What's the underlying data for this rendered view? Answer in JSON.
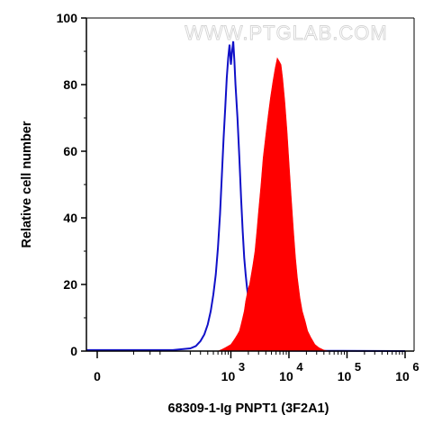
{
  "chart_data": {
    "type": "area",
    "xlabel": "68309-1-Ig PNPT1 (3F2A1)",
    "ylabel": "Relative cell number",
    "x_scale": "biexponential",
    "ylim": [
      0,
      100
    ],
    "y_ticks": [
      0,
      20,
      40,
      60,
      80,
      100
    ],
    "x_ticks": [
      {
        "value": 0,
        "base": "0",
        "exp": ""
      },
      {
        "value": 1000,
        "base": "10",
        "exp": "3"
      },
      {
        "value": 10000,
        "base": "10",
        "exp": "4"
      },
      {
        "value": 100000,
        "base": "10",
        "exp": "5"
      },
      {
        "value": 1000000,
        "base": "10",
        "exp": "6"
      }
    ],
    "watermark": "WWW.PTGLAB.COM",
    "series": [
      {
        "color": "#1010c8",
        "style": "outline",
        "points": [
          [
            -300,
            0.3
          ],
          [
            100,
            0.3
          ],
          [
            200,
            0.8
          ],
          [
            250,
            1.5
          ],
          [
            300,
            3
          ],
          [
            350,
            5
          ],
          [
            400,
            8
          ],
          [
            450,
            12
          ],
          [
            500,
            17
          ],
          [
            550,
            23
          ],
          [
            600,
            31
          ],
          [
            650,
            41
          ],
          [
            700,
            53
          ],
          [
            750,
            64
          ],
          [
            800,
            73
          ],
          [
            850,
            82
          ],
          [
            900,
            88
          ],
          [
            950,
            92
          ],
          [
            1000,
            86
          ],
          [
            1050,
            90
          ],
          [
            1100,
            93
          ],
          [
            1150,
            87
          ],
          [
            1200,
            80
          ],
          [
            1300,
            70
          ],
          [
            1400,
            58
          ],
          [
            1500,
            46
          ],
          [
            1600,
            36
          ],
          [
            1700,
            28
          ],
          [
            1800,
            23
          ],
          [
            1900,
            19
          ],
          [
            2000,
            16
          ],
          [
            2200,
            12
          ],
          [
            2400,
            9
          ],
          [
            2700,
            6
          ],
          [
            3000,
            4
          ],
          [
            3300,
            2.5
          ],
          [
            3700,
            1.5
          ],
          [
            4200,
            0.8
          ],
          [
            5000,
            0.3
          ],
          [
            7000,
            0.1
          ],
          [
            1000000,
            0
          ]
        ]
      },
      {
        "color": "#ff0000",
        "style": "filled",
        "points": [
          [
            600,
            0
          ],
          [
            700,
            0.5
          ],
          [
            800,
            1
          ],
          [
            900,
            1.5
          ],
          [
            1000,
            2
          ],
          [
            1100,
            3
          ],
          [
            1200,
            4
          ],
          [
            1300,
            5
          ],
          [
            1400,
            6
          ],
          [
            1500,
            8
          ],
          [
            1600,
            10
          ],
          [
            1700,
            12
          ],
          [
            1800,
            15
          ],
          [
            1900,
            17
          ],
          [
            2000,
            19
          ],
          [
            2100,
            20
          ],
          [
            2200,
            22
          ],
          [
            2400,
            26
          ],
          [
            2600,
            30
          ],
          [
            2800,
            36
          ],
          [
            3000,
            42
          ],
          [
            3300,
            50
          ],
          [
            3600,
            58
          ],
          [
            4000,
            65
          ],
          [
            4400,
            71
          ],
          [
            4800,
            76
          ],
          [
            5300,
            81
          ],
          [
            5800,
            85
          ],
          [
            6300,
            88
          ],
          [
            6800,
            87
          ],
          [
            7300,
            86
          ],
          [
            7800,
            82
          ],
          [
            8500,
            75
          ],
          [
            9300,
            66
          ],
          [
            10000,
            57
          ],
          [
            11000,
            46
          ],
          [
            12000,
            36
          ],
          [
            13000,
            28
          ],
          [
            14000,
            22
          ],
          [
            15500,
            16
          ],
          [
            17000,
            12
          ],
          [
            19000,
            9
          ],
          [
            21000,
            6
          ],
          [
            24000,
            4
          ],
          [
            28000,
            2
          ],
          [
            33000,
            1
          ],
          [
            40000,
            0.3
          ],
          [
            50000,
            0
          ]
        ]
      }
    ]
  }
}
